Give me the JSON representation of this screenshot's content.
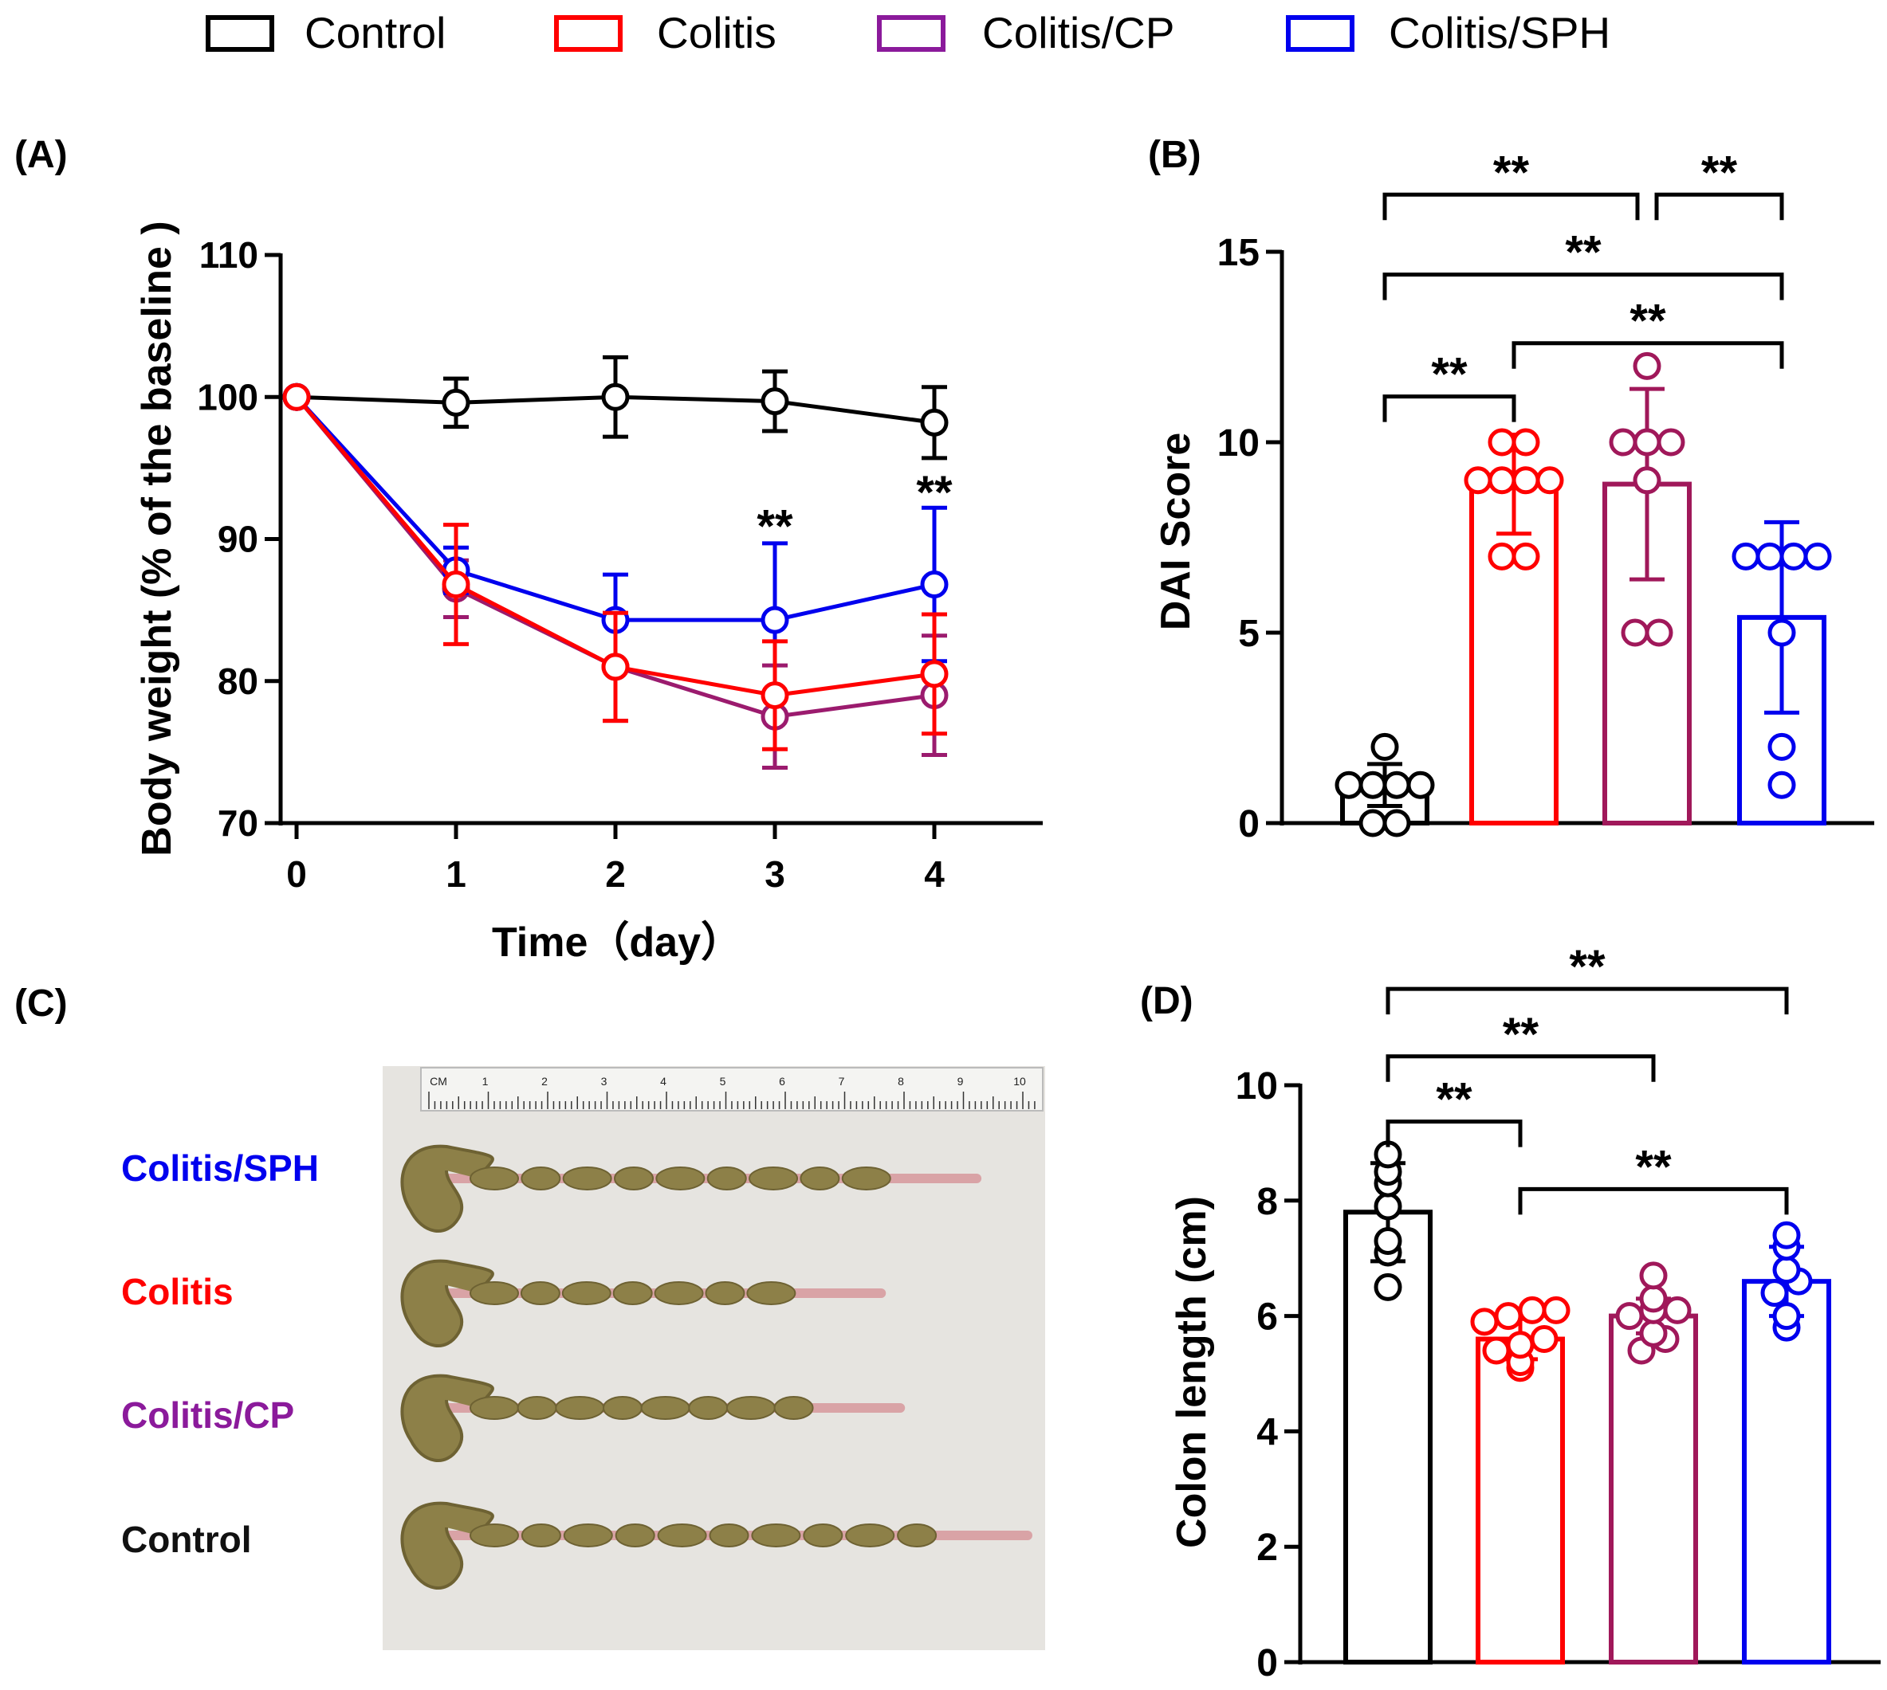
{
  "legend": [
    {
      "label": "Control",
      "color": "#000000"
    },
    {
      "label": "Colitis",
      "color": "#ff0000"
    },
    {
      "label": "Colitis/CP",
      "color": "#8b1a9b"
    },
    {
      "label": "Colitis/SPH",
      "color": "#0000ee"
    }
  ],
  "chart_data": [
    {
      "panel": "(A)",
      "type": "line",
      "xlabel": "Time（day）",
      "ylabel": "Body weight (% of the baseline )",
      "x": [
        0,
        1,
        2,
        3,
        4
      ],
      "xticks": [
        "0",
        "1",
        "2",
        "3",
        "4"
      ],
      "yticks": [
        "70",
        "80",
        "90",
        "100",
        "110"
      ],
      "ylim": [
        70,
        110
      ],
      "series": [
        {
          "name": "Control",
          "color": "#000000",
          "values": [
            100,
            99.6,
            100,
            99.7,
            98.2
          ],
          "error": [
            0,
            1.7,
            2.8,
            2.1,
            2.5
          ]
        },
        {
          "name": "Colitis/CP",
          "color": "#9b1b6e",
          "values": [
            100,
            86.5,
            81,
            77.5,
            79
          ],
          "error": [
            0,
            2,
            3.8,
            3.6,
            4.2
          ]
        },
        {
          "name": "Colitis/SPH",
          "color": "#0000ee",
          "values": [
            100,
            87.8,
            84.3,
            84.3,
            86.8
          ],
          "error": [
            0,
            1.6,
            3.2,
            5.4,
            5.4
          ]
        },
        {
          "name": "Colitis",
          "color": "#ff0000",
          "values": [
            100,
            86.8,
            81,
            79,
            80.5
          ],
          "error": [
            0,
            4.2,
            3.8,
            3.8,
            4.2
          ]
        }
      ],
      "annotations": [
        {
          "text": "**",
          "x": 3,
          "y": 91
        },
        {
          "text": "**",
          "x": 4,
          "y": 93.4
        }
      ]
    },
    {
      "panel": "(B)",
      "type": "bar",
      "ylabel": "DAI Score",
      "categories": [
        "Control",
        "Colitis",
        "Colitis/CP",
        "Colitis/SPH"
      ],
      "colors": [
        "#000000",
        "#ff0000",
        "#a0185a",
        "#0000ee"
      ],
      "yticks": [
        "0",
        "5",
        "10",
        "15"
      ],
      "ylim": [
        0,
        15
      ],
      "values": [
        1.0,
        8.9,
        8.9,
        5.4
      ],
      "error": [
        0.55,
        1.3,
        2.5,
        2.5
      ],
      "points": [
        [
          0,
          0,
          1,
          1,
          1,
          1,
          2
        ],
        [
          7,
          7,
          9,
          9,
          9,
          9,
          10,
          10
        ],
        [
          5,
          5,
          9,
          10,
          10,
          10,
          12
        ],
        [
          1,
          2,
          5,
          7,
          7,
          7,
          7
        ]
      ],
      "brackets": [
        {
          "from": 0,
          "to": 2,
          "y": 16.5,
          "text": "**"
        },
        {
          "from": 2,
          "to": 3,
          "y": 16.5,
          "text": "**"
        },
        {
          "from": 0,
          "to": 3,
          "y": 14.4,
          "text": "**"
        },
        {
          "from": 1,
          "to": 3,
          "y": 12.6,
          "text": "**"
        },
        {
          "from": 0,
          "to": 1,
          "y": 11.2,
          "text": "**"
        }
      ]
    },
    {
      "panel": "(D)",
      "type": "bar",
      "ylabel": "Colon length (cm)",
      "categories": [
        "Control",
        "Colitis",
        "Colitis/CP",
        "Colitis/SPH"
      ],
      "colors": [
        "#000000",
        "#ff0000",
        "#a0185a",
        "#0000ee"
      ],
      "yticks": [
        "0",
        "2",
        "4",
        "6",
        "8",
        "10"
      ],
      "ylim": [
        0,
        10
      ],
      "values": [
        7.8,
        5.6,
        6.0,
        6.6
      ],
      "error": [
        0.85,
        0.35,
        0.3,
        0.6
      ],
      "points": [
        [
          6.5,
          7.1,
          7.3,
          7.9,
          8.3,
          8.5,
          8.8
        ],
        [
          5.1,
          5.2,
          5.4,
          5.5,
          5.6,
          5.9,
          6.0,
          6.1,
          6.1
        ],
        [
          5.4,
          5.6,
          5.7,
          6.0,
          6.1,
          6.1,
          6.3,
          6.7
        ],
        [
          5.8,
          6.0,
          6.4,
          6.6,
          6.8,
          7.2,
          7.4
        ]
      ],
      "brackets": [
        {
          "from": 0,
          "to": 3,
          "y": 11.67,
          "text": "**"
        },
        {
          "from": 0,
          "to": 2,
          "y": 10.5,
          "text": "**"
        },
        {
          "from": 0,
          "to": 1,
          "y": 9.37,
          "text": "**"
        },
        {
          "from": 1,
          "to": 3,
          "y": 8.2,
          "text": "**"
        }
      ]
    }
  ],
  "panel_c": {
    "label": "(C)",
    "groups": [
      {
        "label": "Colitis/SPH",
        "color": "#0000ee",
        "length_cm": 8.7
      },
      {
        "label": "Colitis",
        "color": "#ff0000",
        "length_cm": 7.2
      },
      {
        "label": "Colitis/CP",
        "color": "#8b1a9b",
        "length_cm": 7.5
      },
      {
        "label": "Control",
        "color": "#000000",
        "length_cm": 9.5
      }
    ],
    "ruler_labels": [
      "CM",
      "1",
      "2",
      "3",
      "4",
      "5",
      "6",
      "7",
      "8",
      "9",
      "10"
    ]
  }
}
